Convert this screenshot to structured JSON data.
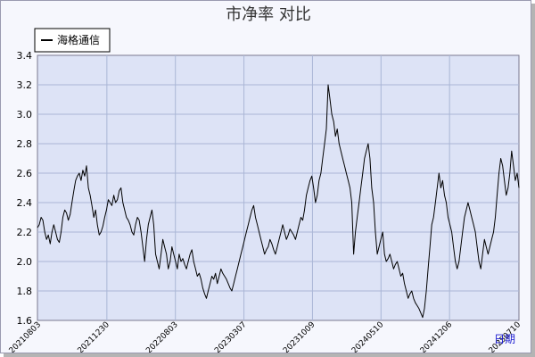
{
  "chart_data": {
    "type": "line",
    "title": "市净率  对比",
    "xlabel": "日期",
    "ylabel": "",
    "ylim": [
      1.6,
      3.4
    ],
    "yticks": [
      1.6,
      1.8,
      2.0,
      2.2,
      2.4,
      2.6,
      2.8,
      3.0,
      3.2,
      3.4
    ],
    "yticks_labels": [
      "1.6",
      "1.8",
      "2.0",
      "2.2",
      "2.4",
      "2.6",
      "2.8",
      "3.0",
      "3.2",
      "3.4"
    ],
    "xticks": [
      "20210803",
      "20211230",
      "20220803",
      "20230307",
      "20231009",
      "20240510",
      "20241206",
      "20250710"
    ],
    "grid": true,
    "legend": "top-left",
    "colors": {
      "plot_bg": "#dde3f6",
      "grid": "#aab6d6",
      "line": "#000000"
    },
    "series": [
      {
        "name": "海格通信",
        "values": [
          2.23,
          2.25,
          2.3,
          2.28,
          2.2,
          2.15,
          2.18,
          2.12,
          2.2,
          2.25,
          2.2,
          2.15,
          2.13,
          2.2,
          2.3,
          2.35,
          2.33,
          2.28,
          2.32,
          2.4,
          2.48,
          2.55,
          2.58,
          2.6,
          2.55,
          2.62,
          2.58,
          2.65,
          2.5,
          2.45,
          2.38,
          2.3,
          2.35,
          2.25,
          2.18,
          2.2,
          2.24,
          2.3,
          2.35,
          2.42,
          2.4,
          2.38,
          2.45,
          2.4,
          2.42,
          2.48,
          2.5,
          2.4,
          2.35,
          2.3,
          2.28,
          2.25,
          2.2,
          2.18,
          2.25,
          2.3,
          2.28,
          2.2,
          2.1,
          2.0,
          2.15,
          2.25,
          2.3,
          2.35,
          2.25,
          2.05,
          2.0,
          1.95,
          2.05,
          2.15,
          2.1,
          2.05,
          1.95,
          2.0,
          2.1,
          2.05,
          2.0,
          1.95,
          2.05,
          2.0,
          2.02,
          1.98,
          1.95,
          2.0,
          2.05,
          2.08,
          2.0,
          1.95,
          1.9,
          1.92,
          1.88,
          1.82,
          1.78,
          1.75,
          1.8,
          1.85,
          1.9,
          1.88,
          1.92,
          1.85,
          1.9,
          1.95,
          1.92,
          1.9,
          1.88,
          1.85,
          1.82,
          1.8,
          1.85,
          1.9,
          1.95,
          2.0,
          2.05,
          2.1,
          2.15,
          2.2,
          2.25,
          2.3,
          2.35,
          2.38,
          2.3,
          2.25,
          2.2,
          2.15,
          2.1,
          2.05,
          2.08,
          2.1,
          2.15,
          2.12,
          2.08,
          2.05,
          2.1,
          2.15,
          2.2,
          2.25,
          2.2,
          2.15,
          2.18,
          2.22,
          2.2,
          2.18,
          2.15,
          2.2,
          2.25,
          2.3,
          2.28,
          2.35,
          2.45,
          2.5,
          2.55,
          2.58,
          2.5,
          2.4,
          2.45,
          2.55,
          2.6,
          2.7,
          2.8,
          2.9,
          3.2,
          3.1,
          3.0,
          2.95,
          2.85,
          2.9,
          2.8,
          2.75,
          2.7,
          2.65,
          2.6,
          2.55,
          2.5,
          2.4,
          2.05,
          2.2,
          2.3,
          2.4,
          2.5,
          2.6,
          2.7,
          2.75,
          2.8,
          2.7,
          2.5,
          2.4,
          2.2,
          2.05,
          2.1,
          2.15,
          2.2,
          2.05,
          2.0,
          2.02,
          2.05,
          2.0,
          1.95,
          1.98,
          2.0,
          1.95,
          1.9,
          1.92,
          1.85,
          1.8,
          1.75,
          1.78,
          1.8,
          1.75,
          1.72,
          1.7,
          1.68,
          1.65,
          1.62,
          1.68,
          1.8,
          1.95,
          2.1,
          2.25,
          2.3,
          2.4,
          2.5,
          2.6,
          2.5,
          2.55,
          2.45,
          2.4,
          2.3,
          2.25,
          2.2,
          2.1,
          2.0,
          1.95,
          2.0,
          2.1,
          2.2,
          2.3,
          2.35,
          2.4,
          2.35,
          2.3,
          2.25,
          2.2,
          2.1,
          2.0,
          1.95,
          2.05,
          2.15,
          2.1,
          2.05,
          2.1,
          2.15,
          2.2,
          2.3,
          2.45,
          2.6,
          2.7,
          2.65,
          2.55,
          2.45,
          2.5,
          2.6,
          2.75,
          2.65,
          2.55,
          2.6,
          2.5
        ]
      }
    ]
  }
}
